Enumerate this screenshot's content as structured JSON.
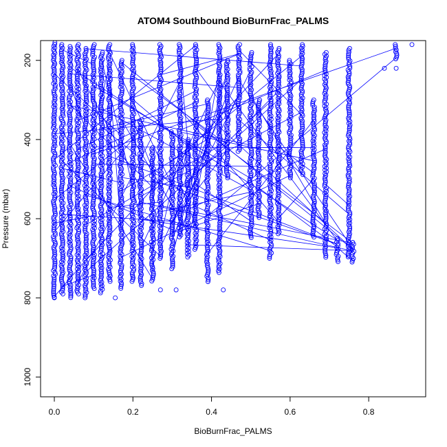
{
  "chart_data": {
    "type": "scatter",
    "title": "ATOM4 Southbound BioBurnFrac_PALMS",
    "xlabel": "BioBurnFrac_PALMS",
    "ylabel": "Pressure (mbar)",
    "xlim": [
      -0.035,
      0.945
    ],
    "ylim": [
      1050,
      150
    ],
    "y_reversed": true,
    "x_ticks": [
      0.0,
      0.2,
      0.4,
      0.6,
      0.8
    ],
    "x_tick_labels": [
      "0.0",
      "0.2",
      "0.4",
      "0.6",
      "0.8"
    ],
    "y_ticks": [
      200,
      400,
      600,
      800,
      1000
    ],
    "y_tick_labels": [
      "200",
      "400",
      "600",
      "800",
      "1000"
    ],
    "grid": false,
    "series_color": "#0000ff",
    "marker": "open-circle",
    "connect_points": true,
    "columns": [
      {
        "x": 0.0,
        "p_top": 155,
        "p_bottom": 800
      },
      {
        "x": 0.02,
        "p_top": 160,
        "p_bottom": 790
      },
      {
        "x": 0.04,
        "p_top": 165,
        "p_bottom": 800
      },
      {
        "x": 0.06,
        "p_top": 160,
        "p_bottom": 790
      },
      {
        "x": 0.08,
        "p_top": 170,
        "p_bottom": 800
      },
      {
        "x": 0.1,
        "p_top": 160,
        "p_bottom": 780
      },
      {
        "x": 0.12,
        "p_top": 180,
        "p_bottom": 790
      },
      {
        "x": 0.14,
        "p_top": 160,
        "p_bottom": 760
      },
      {
        "x": 0.17,
        "p_top": 200,
        "p_bottom": 780
      },
      {
        "x": 0.2,
        "p_top": 160,
        "p_bottom": 760
      },
      {
        "x": 0.22,
        "p_top": 350,
        "p_bottom": 770
      },
      {
        "x": 0.25,
        "p_top": 420,
        "p_bottom": 760
      },
      {
        "x": 0.27,
        "p_top": 160,
        "p_bottom": 700
      },
      {
        "x": 0.3,
        "p_top": 380,
        "p_bottom": 730
      },
      {
        "x": 0.32,
        "p_top": 160,
        "p_bottom": 650
      },
      {
        "x": 0.34,
        "p_top": 400,
        "p_bottom": 700
      },
      {
        "x": 0.36,
        "p_top": 160,
        "p_bottom": 680
      },
      {
        "x": 0.39,
        "p_top": 300,
        "p_bottom": 760
      },
      {
        "x": 0.42,
        "p_top": 160,
        "p_bottom": 740
      },
      {
        "x": 0.44,
        "p_top": 200,
        "p_bottom": 500
      },
      {
        "x": 0.47,
        "p_top": 160,
        "p_bottom": 430
      },
      {
        "x": 0.5,
        "p_top": 180,
        "p_bottom": 650
      },
      {
        "x": 0.52,
        "p_top": 300,
        "p_bottom": 600
      },
      {
        "x": 0.55,
        "p_top": 160,
        "p_bottom": 700
      },
      {
        "x": 0.57,
        "p_top": 170,
        "p_bottom": 640
      },
      {
        "x": 0.6,
        "p_top": 200,
        "p_bottom": 500
      },
      {
        "x": 0.63,
        "p_top": 160,
        "p_bottom": 490
      },
      {
        "x": 0.66,
        "p_top": 300,
        "p_bottom": 650
      },
      {
        "x": 0.69,
        "p_top": 180,
        "p_bottom": 700
      },
      {
        "x": 0.72,
        "p_top": 650,
        "p_bottom": 710
      },
      {
        "x": 0.75,
        "p_top": 170,
        "p_bottom": 700
      },
      {
        "x": 0.76,
        "p_top": 660,
        "p_bottom": 710
      },
      {
        "x": 0.87,
        "p_top": 160,
        "p_bottom": 200
      }
    ],
    "isolated_points": [
      {
        "x": 0.0,
        "y": 800
      },
      {
        "x": 0.155,
        "y": 800
      },
      {
        "x": 0.27,
        "y": 780
      },
      {
        "x": 0.31,
        "y": 780
      },
      {
        "x": 0.43,
        "y": 780
      },
      {
        "x": 0.84,
        "y": 220
      },
      {
        "x": 0.87,
        "y": 220
      },
      {
        "x": 0.91,
        "y": 160
      }
    ]
  }
}
